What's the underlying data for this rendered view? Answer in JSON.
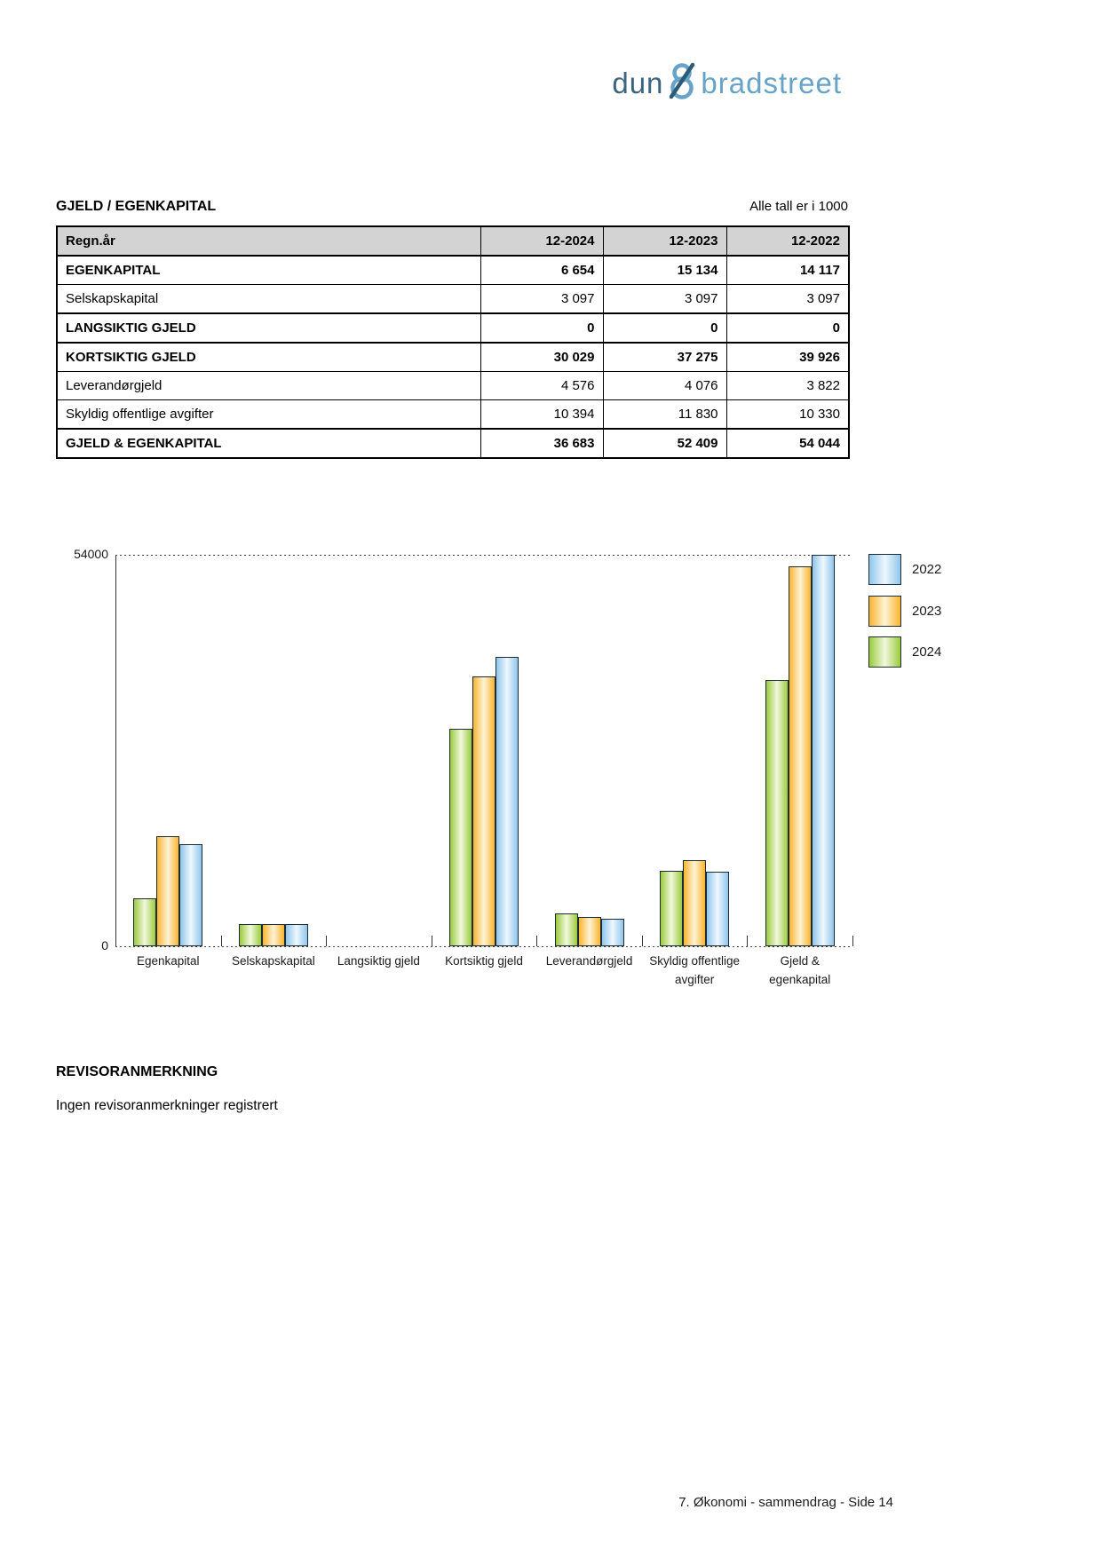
{
  "logo": {
    "part1": "dun",
    "amp": "&",
    "part2": "bradstreet"
  },
  "section": {
    "title": "GJELD / EGENKAPITAL",
    "note": "Alle tall er i 1000"
  },
  "table": {
    "headers": [
      "Regn.år",
      "12-2024",
      "12-2023",
      "12-2022"
    ],
    "rows": [
      {
        "label": "EGENKAPITAL",
        "values": [
          "6 654",
          "15 134",
          "14 117"
        ],
        "section": true
      },
      {
        "label": "Selskapskapital",
        "values": [
          "3 097",
          "3 097",
          "3 097"
        ],
        "section": false
      },
      {
        "label": "LANGSIKTIG GJELD",
        "values": [
          "0",
          "0",
          "0"
        ],
        "section": true
      },
      {
        "label": "KORTSIKTIG GJELD",
        "values": [
          "30 029",
          "37 275",
          "39 926"
        ],
        "section": true
      },
      {
        "label": "Leverandørgjeld",
        "values": [
          "4 576",
          "4 076",
          "3 822"
        ],
        "section": false
      },
      {
        "label": "Skyldig offentlige avgifter",
        "values": [
          "10 394",
          "11 830",
          "10 330"
        ],
        "section": false
      },
      {
        "label": "GJELD & EGENKAPITAL",
        "values": [
          "36 683",
          "52 409",
          "54 044"
        ],
        "section": true
      }
    ]
  },
  "chart_data": {
    "type": "bar",
    "title": "",
    "xlabel": "",
    "ylabel": "",
    "ylim": [
      0,
      54000
    ],
    "yticks": [
      {
        "value": 54000,
        "label": "54000"
      },
      {
        "value": 0,
        "label": "0"
      }
    ],
    "grid": "dotted ylines at 0 and 54000",
    "categories": [
      [
        "Egenkapital"
      ],
      [
        "Selskapskapital"
      ],
      [
        "Langsiktig gjeld"
      ],
      [
        "Kortsiktig gjeld"
      ],
      [
        "Leverandørgjeld"
      ],
      [
        "Skyldig offentlige",
        "avgifter"
      ],
      [
        "Gjeld &",
        "egenkapital"
      ]
    ],
    "series": [
      {
        "name": "2024",
        "edge": "#9bcb3d",
        "center": "#f1f8dc",
        "values": [
          6654,
          3097,
          0,
          30029,
          4576,
          10394,
          36683
        ]
      },
      {
        "name": "2023",
        "edge": "#fab42e",
        "center": "#fdf3d5",
        "values": [
          15134,
          3097,
          0,
          37275,
          4076,
          11830,
          52409
        ]
      },
      {
        "name": "2022",
        "edge": "#8fc6ec",
        "center": "#eef7fd",
        "values": [
          14117,
          3097,
          0,
          39926,
          3822,
          10330,
          54044
        ]
      }
    ],
    "legend": [
      "2022",
      "2023",
      "2024"
    ],
    "legend_position": "right"
  },
  "revisor": {
    "title": "REVISORANMERKNING",
    "body": "Ingen revisoranmerkninger registrert"
  },
  "footer": {
    "text": "7. Økonomi - sammendrag - Side 14"
  },
  "colors": {
    "logo_dark": "#3a647f",
    "logo_light": "#67a3c8",
    "header_bg": "#d3d3d3",
    "bar_border": "#1c2b36"
  }
}
